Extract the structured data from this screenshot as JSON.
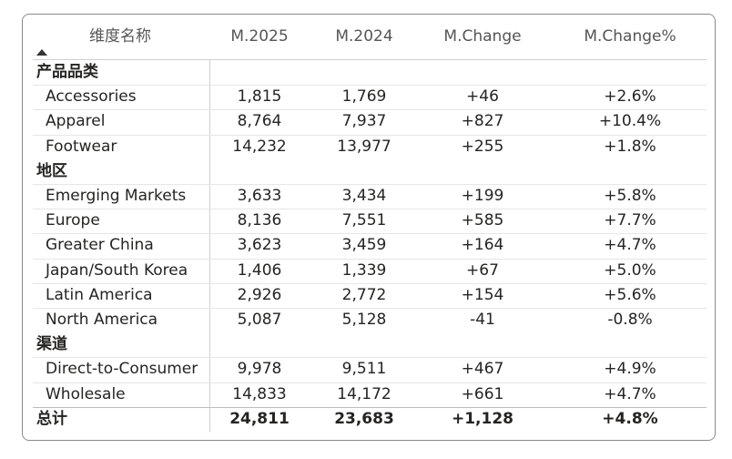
{
  "table": {
    "columns": [
      "维度名称",
      "M.2025",
      "M.2024",
      "M.Change",
      "M.Change%"
    ],
    "groups": [
      {
        "label": "产品品类",
        "rows": [
          [
            "Accessories",
            "1,815",
            "1,769",
            "+46",
            "+2.6%"
          ],
          [
            "Apparel",
            "8,764",
            "7,937",
            "+827",
            "+10.4%"
          ],
          [
            "Footwear",
            "14,232",
            "13,977",
            "+255",
            "+1.8%"
          ]
        ]
      },
      {
        "label": "地区",
        "rows": [
          [
            "Emerging Markets",
            "3,633",
            "3,434",
            "+199",
            "+5.8%"
          ],
          [
            "Europe",
            "8,136",
            "7,551",
            "+585",
            "+7.7%"
          ],
          [
            "Greater China",
            "3,623",
            "3,459",
            "+164",
            "+4.7%"
          ],
          [
            "Japan/South Korea",
            "1,406",
            "1,339",
            "+67",
            "+5.0%"
          ],
          [
            "Latin America",
            "2,926",
            "2,772",
            "+154",
            "+5.6%"
          ],
          [
            "North America",
            "5,087",
            "5,128",
            "-41",
            "-0.8%"
          ]
        ]
      },
      {
        "label": "渠道",
        "rows": [
          [
            "Direct-to-Consumer",
            "9,978",
            "9,511",
            "+467",
            "+4.9%"
          ],
          [
            "Wholesale",
            "14,833",
            "14,172",
            "+661",
            "+4.7%"
          ]
        ]
      }
    ],
    "total": [
      "总计",
      "24,811",
      "23,683",
      "+1,128",
      "+4.8%"
    ]
  }
}
